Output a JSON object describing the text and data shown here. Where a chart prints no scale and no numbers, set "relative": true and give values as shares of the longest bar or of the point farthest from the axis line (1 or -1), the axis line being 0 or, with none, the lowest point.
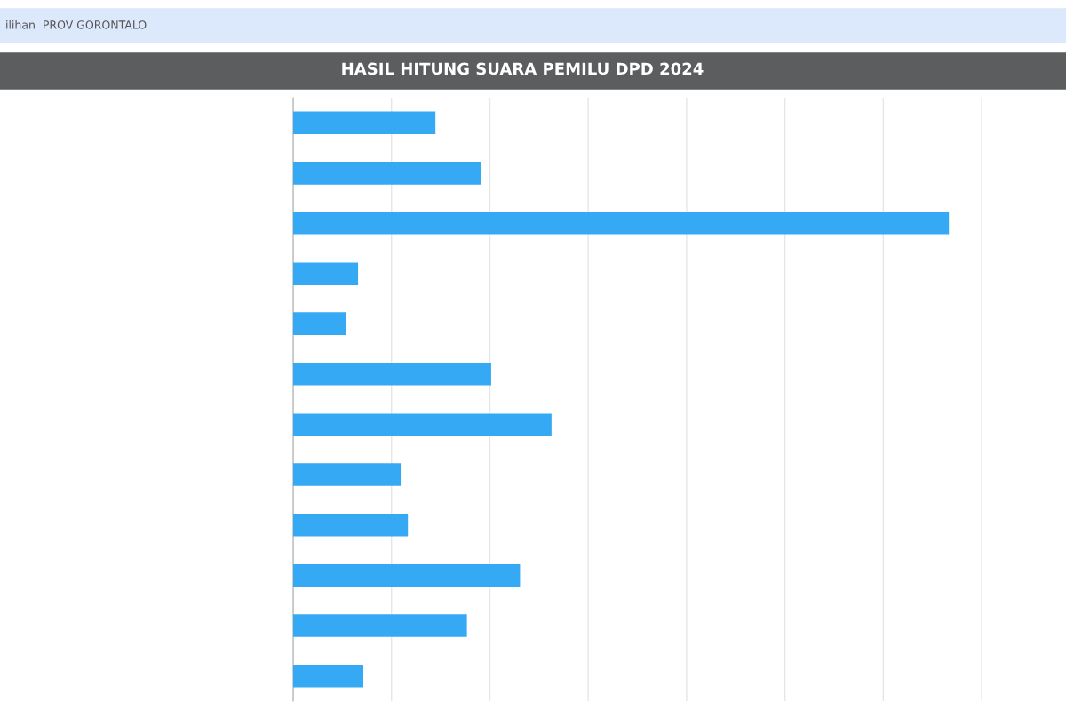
{
  "chart_data": {
    "type": "bar",
    "orientation": "horizontal",
    "relative": true,
    "title": "HASIL HITUNG SUARA PEMILU DPD 2024",
    "annotations": [
      "ilihan  PROV GORONTALO"
    ],
    "categories": [
      null,
      null,
      null,
      null,
      null,
      null,
      null,
      null,
      null,
      null,
      null,
      null
    ],
    "values": [
      0.217,
      0.287,
      1,
      0.099,
      0.081,
      0.302,
      0.394,
      0.164,
      0.175,
      0.346,
      0.265,
      0.107
    ],
    "color": "#35a9f3",
    "grid": "x"
  }
}
